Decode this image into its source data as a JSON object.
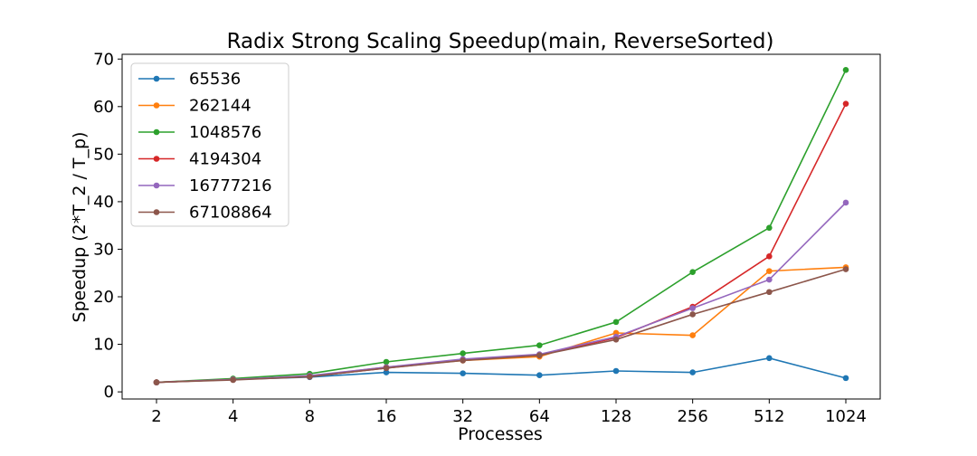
{
  "chart_data": {
    "type": "line",
    "title": "Radix Strong Scaling Speedup(main, ReverseSorted)",
    "xlabel": "Processes",
    "ylabel": "Speedup (2*T_2 / T_p)",
    "categories": [
      "2",
      "4",
      "8",
      "16",
      "32",
      "64",
      "128",
      "256",
      "512",
      "1024"
    ],
    "ylim": [
      -1.5,
      71
    ],
    "yticks": [
      0,
      10,
      20,
      30,
      40,
      50,
      60,
      70
    ],
    "grid": false,
    "legend_position": "top-left",
    "series": [
      {
        "name": "65536",
        "color": "#1f77b4",
        "values": [
          2.0,
          2.6,
          3.1,
          4.1,
          3.9,
          3.5,
          4.4,
          4.1,
          7.1,
          2.9
        ]
      },
      {
        "name": "262144",
        "color": "#ff7f0e",
        "values": [
          2.0,
          2.6,
          3.3,
          5.2,
          6.6,
          7.4,
          12.4,
          11.9,
          25.4,
          26.2
        ]
      },
      {
        "name": "1048576",
        "color": "#2ca02c",
        "values": [
          2.0,
          2.8,
          3.8,
          6.3,
          8.1,
          9.8,
          14.7,
          25.2,
          34.5,
          67.7
        ]
      },
      {
        "name": "4194304",
        "color": "#d62728",
        "values": [
          2.0,
          2.6,
          3.2,
          5.0,
          6.7,
          7.7,
          11.4,
          17.9,
          28.5,
          60.6
        ]
      },
      {
        "name": "16777216",
        "color": "#9467bd",
        "values": [
          2.0,
          2.6,
          3.4,
          5.2,
          6.9,
          7.9,
          11.6,
          17.6,
          23.6,
          39.8
        ]
      },
      {
        "name": "67108864",
        "color": "#8c564b",
        "values": [
          2.0,
          2.5,
          3.2,
          5.0,
          6.6,
          7.7,
          11.0,
          16.3,
          21.0,
          25.8
        ]
      }
    ]
  }
}
